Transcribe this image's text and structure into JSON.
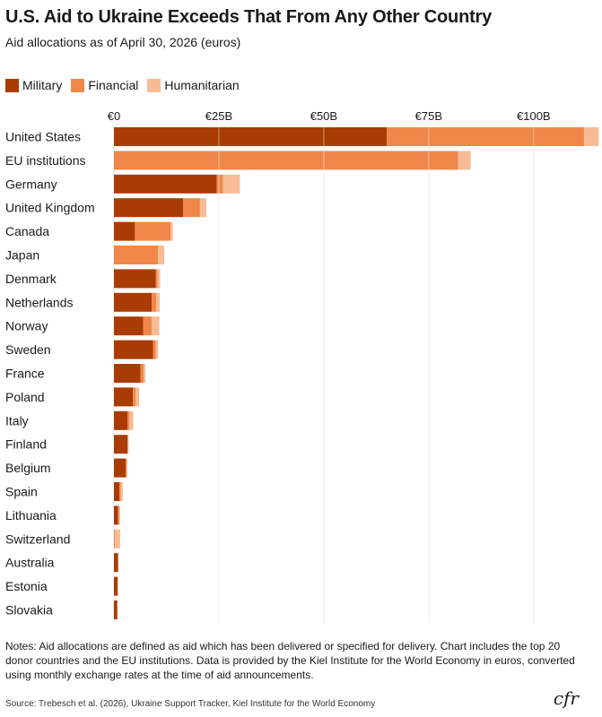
{
  "title": "U.S. Aid to Ukraine Exceeds That From Any Other Country",
  "subtitle": "Aid allocations as of April 30, 2026 (euros)",
  "legend": [
    {
      "label": "Military",
      "color": "#a83c04"
    },
    {
      "label": "Financial",
      "color": "#f0874a"
    },
    {
      "label": "Humanitarian",
      "color": "#f7bc94"
    }
  ],
  "notes": "Notes: Aid allocations are defined as aid which has been delivered or specified for delivery. Chart includes the top 20 donor countries and the EU institutions. Data is provided by the Kiel Institute for the World Economy in euros, converted using monthly exchange rates at the time of aid announcements.",
  "source": "Source: Trebesch et al. (2026), Ukraine Support Tracker, Kiel Institute for the World Economy",
  "logo": "cfr",
  "chart_data": {
    "type": "bar",
    "orientation": "horizontal",
    "stacked": true,
    "title": "U.S. Aid to Ukraine Exceeds That From Any Other Country",
    "subtitle": "Aid allocations as of April 30, 2026 (euros)",
    "xlim": [
      0,
      115
    ],
    "x_ticks": [
      0,
      25,
      50,
      75,
      100
    ],
    "x_tick_labels": [
      "€0",
      "€25B",
      "€50B",
      "€75B",
      "€100B"
    ],
    "grid": true,
    "legend_position": "top-left",
    "categories": [
      "United States",
      "EU institutions",
      "Germany",
      "United Kingdom",
      "Canada",
      "Japan",
      "Denmark",
      "Netherlands",
      "Norway",
      "Sweden",
      "France",
      "Poland",
      "Italy",
      "Finland",
      "Belgium",
      "Spain",
      "Lithuania",
      "Switzerland",
      "Australia",
      "Estonia",
      "Slovakia"
    ],
    "series": [
      {
        "name": "Military",
        "color": "#a83c04",
        "values": [
          65.0,
          0,
          24.5,
          16.5,
          5.0,
          0,
          10.0,
          9.0,
          7.0,
          9.3,
          6.3,
          4.5,
          3.2,
          3.2,
          2.8,
          1.3,
          1.0,
          0,
          1.0,
          0.9,
          0.8
        ]
      },
      {
        "name": "Financial",
        "color": "#f0874a",
        "values": [
          47.0,
          82.0,
          1.5,
          4.0,
          8.5,
          10.5,
          0.4,
          1.1,
          2.0,
          0.7,
          0.8,
          0.7,
          0.5,
          0.1,
          0.2,
          0.3,
          0.2,
          0.2,
          0,
          0,
          0
        ]
      },
      {
        "name": "Humanitarian",
        "color": "#f7bc94",
        "values": [
          3.5,
          3.0,
          4.0,
          1.5,
          0.5,
          1.5,
          0.6,
          0.8,
          1.8,
          0.5,
          0.4,
          0.8,
          0.9,
          0.2,
          0.2,
          0.5,
          0.3,
          1.3,
          0,
          0,
          0
        ]
      }
    ]
  }
}
